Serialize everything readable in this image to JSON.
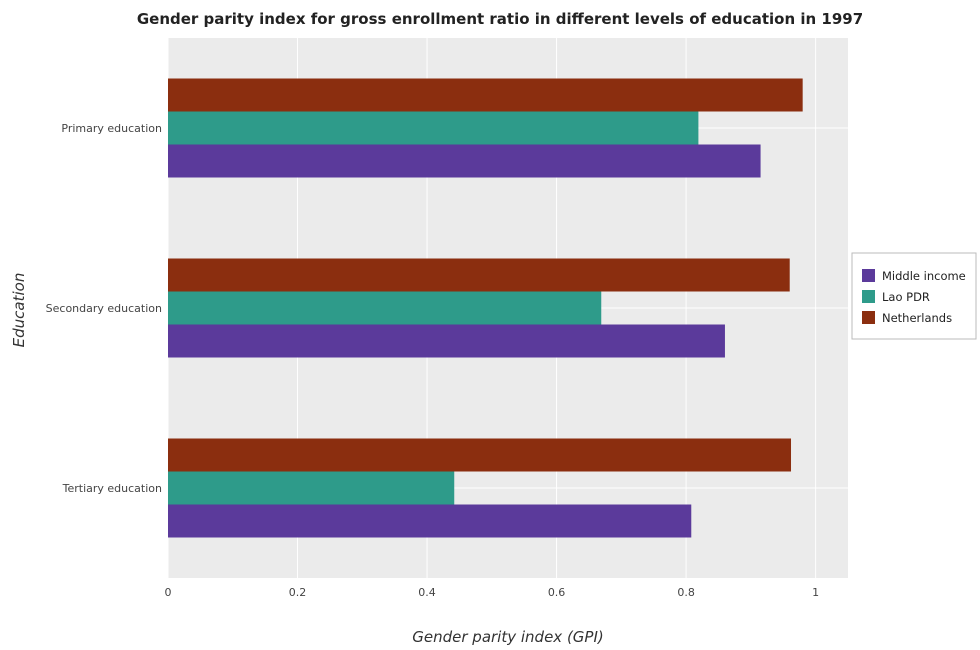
{
  "chart_data": {
    "type": "bar",
    "orientation": "horizontal",
    "title": "Gender parity index for gross enrollment ratio in different levels of education in 1997",
    "xlabel": "Gender parity index (GPI)",
    "ylabel": "Education",
    "categories": [
      "Primary education",
      "Secondary education",
      "Tertiary education"
    ],
    "series": [
      {
        "name": "Middle income",
        "color": "#5b3a9b",
        "values": [
          0.915,
          0.86,
          0.808
        ]
      },
      {
        "name": "Lao PDR",
        "color": "#2e9b8a",
        "values": [
          0.819,
          0.669,
          0.442
        ]
      },
      {
        "name": "Netherlands",
        "color": "#8b2e0f",
        "values": [
          0.98,
          0.96,
          0.962
        ]
      }
    ],
    "xlim": [
      0,
      1.05
    ],
    "xticks": [
      0,
      0.2,
      0.4,
      0.6,
      0.8,
      1
    ],
    "xtick_labels": [
      "0",
      "0.2",
      "0.4",
      "0.6",
      "0.8",
      "1"
    ],
    "grid": true,
    "legend_position": "right"
  }
}
